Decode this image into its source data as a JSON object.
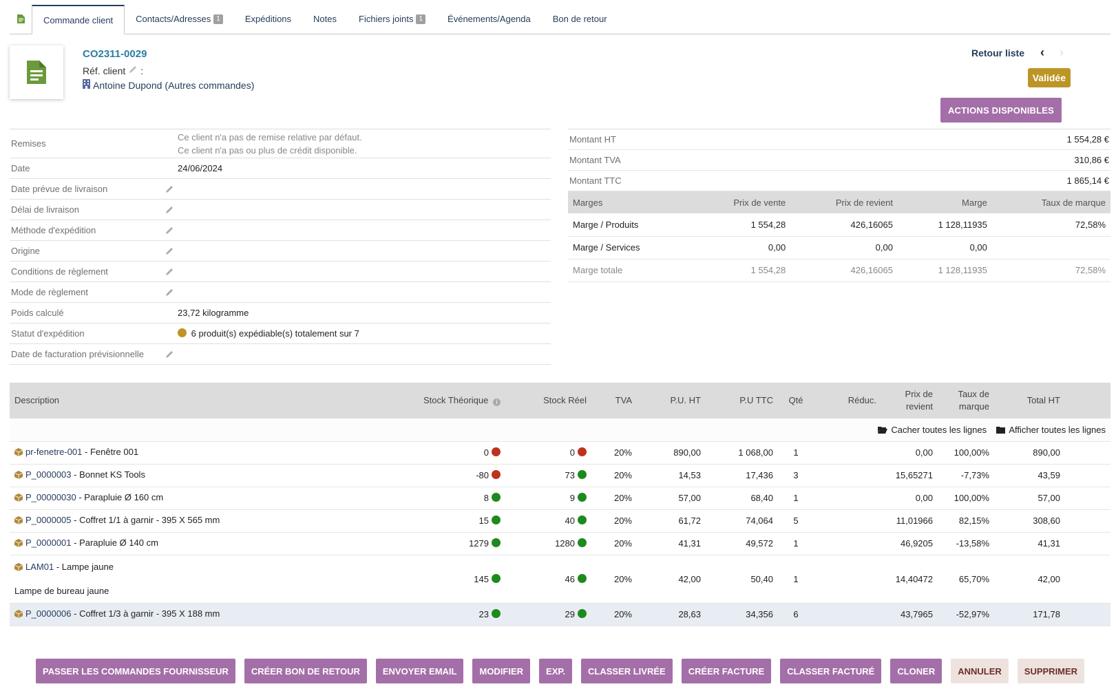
{
  "tabs": [
    {
      "label": "Commande client",
      "badge": ""
    },
    {
      "label": "Contacts/Adresses",
      "badge": "1"
    },
    {
      "label": "Expéditions",
      "badge": ""
    },
    {
      "label": "Notes",
      "badge": ""
    },
    {
      "label": "Fichiers joints",
      "badge": "1"
    },
    {
      "label": "Événements/Agenda",
      "badge": ""
    },
    {
      "label": "Bon de retour",
      "badge": ""
    }
  ],
  "header": {
    "ref": "CO2311-0029",
    "ref_client_label": "Réf. client",
    "ref_client_sep": ":",
    "thirdparty": "Antoine Dupond",
    "other_orders": "(Autres commandes)",
    "back_to_list": "Retour liste",
    "status": "Validée",
    "actions": "ACTIONS DISPONIBLES",
    "colors": {
      "status": "#bc9526",
      "accent": "#a46fa8",
      "link": "#263c5c"
    }
  },
  "fields": {
    "discounts_label": "Remises",
    "discounts_line1": "Ce client n'a pas de remise relative par défaut.",
    "discounts_line2": "Ce client n'a pas ou plus de crédit disponible.",
    "date_label": "Date",
    "date_value": "24/06/2024",
    "delivery_date_label": "Date prévue de livraison",
    "delivery_delay_label": "Délai de livraison",
    "shipping_method_label": "Méthode d'expédition",
    "origin_label": "Origine",
    "payment_terms_label": "Conditions de règlement",
    "payment_mode_label": "Mode de règlement",
    "weight_label": "Poids calculé",
    "weight_value": "23,72 kilogramme",
    "shipping_status_label": "Statut d'expédition",
    "shipping_status_value": "6 produit(s) expédiable(s) totalement sur 7",
    "invoice_date_label": "Date de facturation prévisionnelle"
  },
  "amounts": {
    "ht_label": "Montant HT",
    "ht_value": "1 554,28 €",
    "tva_label": "Montant TVA",
    "tva_value": "310,86 €",
    "ttc_label": "Montant TTC",
    "ttc_value": "1 865,14 €"
  },
  "margins": {
    "headers": [
      "Marges",
      "Prix de vente",
      "Prix de revient",
      "Marge",
      "Taux de marque"
    ],
    "rows": [
      [
        "Marge / Produits",
        "1 554,28",
        "426,16065",
        "1 128,11935",
        "72,58%"
      ],
      [
        "Marge / Services",
        "0,00",
        "0,00",
        "0,00",
        ""
      ],
      [
        "Marge totale",
        "1 554,28",
        "426,16065",
        "1 128,11935",
        "72,58%"
      ]
    ]
  },
  "lines": {
    "headers": {
      "desc": "Description",
      "stock_theo": "Stock Théorique",
      "stock_real": "Stock Réel",
      "tva": "TVA",
      "pu_ht": "P.U. HT",
      "pu_ttc": "P.U TTC",
      "qty": "Qté",
      "discount": "Réduc.",
      "cost_1": "Prix de",
      "cost_2": "revient",
      "markup_1": "Taux de",
      "markup_2": "marque",
      "total": "Total HT"
    },
    "hide_all": "Cacher toutes les lignes",
    "show_all": "Afficher toutes les lignes",
    "rows": [
      {
        "ref": "pr-fenetre-001",
        "label": " - Fenêtre 001",
        "note": "",
        "stock_theo": "0",
        "theo_status": "red",
        "stock_real": "0",
        "real_status": "red",
        "tva": "20%",
        "pu_ht": "890,00",
        "pu_ttc": "1 068,00",
        "qty": "1",
        "discount": "",
        "cost": "0,00",
        "markup": "100,00%",
        "total": "890,00"
      },
      {
        "ref": "P_0000003",
        "label": " - Bonnet KS Tools",
        "note": "",
        "stock_theo": "-80",
        "theo_status": "red",
        "stock_real": "73",
        "real_status": "green",
        "tva": "20%",
        "pu_ht": "14,53",
        "pu_ttc": "17,436",
        "qty": "3",
        "discount": "",
        "cost": "15,65271",
        "markup": "-7,73%",
        "total": "43,59"
      },
      {
        "ref": "P_00000030",
        "label": " - Parapluie Ø 160 cm",
        "note": "",
        "stock_theo": "8",
        "theo_status": "green",
        "stock_real": "9",
        "real_status": "green",
        "tva": "20%",
        "pu_ht": "57,00",
        "pu_ttc": "68,40",
        "qty": "1",
        "discount": "",
        "cost": "0,00",
        "markup": "100,00%",
        "total": "57,00"
      },
      {
        "ref": "P_0000005",
        "label": " - Coffret 1/1 à garnir - 395 X 565 mm",
        "note": "",
        "stock_theo": "15",
        "theo_status": "green",
        "stock_real": "40",
        "real_status": "green",
        "tva": "20%",
        "pu_ht": "61,72",
        "pu_ttc": "74,064",
        "qty": "5",
        "discount": "",
        "cost": "11,01966",
        "markup": "82,15%",
        "total": "308,60"
      },
      {
        "ref": "P_0000001",
        "label": " - Parapluie Ø 140 cm",
        "note": "",
        "stock_theo": "1279",
        "theo_status": "green",
        "stock_real": "1280",
        "real_status": "green",
        "tva": "20%",
        "pu_ht": "41,31",
        "pu_ttc": "49,572",
        "qty": "1",
        "discount": "",
        "cost": "46,9205",
        "markup": "-13,58%",
        "total": "41,31"
      },
      {
        "ref": "LAM01",
        "label": " - Lampe jaune",
        "note": "Lampe de bureau jaune",
        "stock_theo": "145",
        "theo_status": "green",
        "stock_real": "46",
        "real_status": "green",
        "tva": "20%",
        "pu_ht": "42,00",
        "pu_ttc": "50,40",
        "qty": "1",
        "discount": "",
        "cost": "14,40472",
        "markup": "65,70%",
        "total": "42,00"
      },
      {
        "ref": "P_0000006",
        "label": " - Coffret 1/3 à garnir - 395 X 188 mm",
        "note": "",
        "stock_theo": "23",
        "theo_status": "green",
        "stock_real": "29",
        "real_status": "green",
        "tva": "20%",
        "pu_ht": "28,63",
        "pu_ttc": "34,356",
        "qty": "6",
        "discount": "",
        "cost": "43,7965",
        "markup": "-52,97%",
        "total": "171,78"
      }
    ]
  },
  "buttons": [
    {
      "label": "PASSER LES COMMANDES FOURNISSEUR",
      "style": "primary"
    },
    {
      "label": "CRÉER BON DE RETOUR",
      "style": "primary"
    },
    {
      "label": "ENVOYER EMAIL",
      "style": "primary"
    },
    {
      "label": "MODIFIER",
      "style": "primary"
    },
    {
      "label": "EXP.",
      "style": "primary"
    },
    {
      "label": "CLASSER LIVRÉE",
      "style": "primary"
    },
    {
      "label": "CRÉER FACTURE",
      "style": "primary"
    },
    {
      "label": "CLASSER FACTURÉ",
      "style": "primary"
    },
    {
      "label": "CLONER",
      "style": "primary"
    },
    {
      "label": "ANNULER",
      "style": "light"
    },
    {
      "label": "SUPPRIMER",
      "style": "light"
    }
  ]
}
